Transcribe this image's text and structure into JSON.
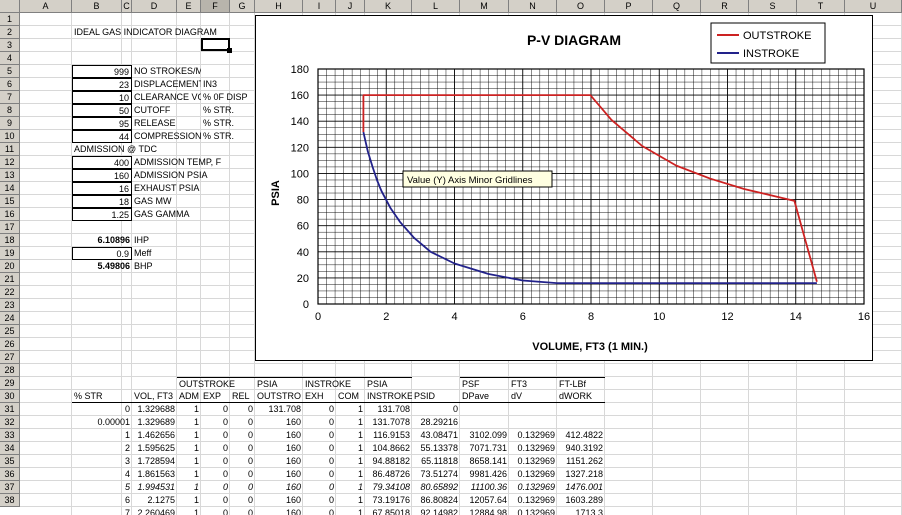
{
  "columns": [
    "A",
    "B",
    "C",
    "D",
    "E",
    "F",
    "G",
    "H",
    "I",
    "J",
    "K",
    "L",
    "M",
    "N",
    "O",
    "P",
    "Q",
    "R",
    "S",
    "T",
    "U"
  ],
  "visible_rows": [
    1,
    2,
    3,
    4,
    5,
    6,
    7,
    8,
    9,
    10,
    11,
    12,
    13,
    14,
    15,
    16,
    17,
    18,
    19,
    20,
    21,
    22,
    23,
    24,
    25,
    26,
    27,
    28,
    29,
    30,
    31,
    32,
    33,
    34,
    35,
    36,
    37,
    38,
    39
  ],
  "header_rows_shown": [
    1,
    2,
    3,
    4,
    5,
    6,
    7,
    8,
    9,
    10,
    11,
    12,
    13,
    14,
    15,
    16,
    17,
    18,
    19,
    20,
    21,
    22,
    23,
    24,
    25,
    26,
    27,
    28,
    29,
    30,
    31,
    32,
    33,
    34,
    35,
    36,
    37,
    38
  ],
  "title_cell": "IDEAL GAS INDICATOR DIAGRAM",
  "inputs": [
    {
      "row": 5,
      "value": "999",
      "label": "NO STROKES/MIN",
      "unit": ""
    },
    {
      "row": 6,
      "value": "23",
      "label": "DISPLACEMENT",
      "unit": "IN3"
    },
    {
      "row": 7,
      "value": "10",
      "label": "CLEARANCE VOL",
      "unit": "% 0F DISP"
    },
    {
      "row": 8,
      "value": "50",
      "label": "CUTOFF",
      "unit": "% STR."
    },
    {
      "row": 9,
      "value": "95",
      "label": "RELEASE",
      "unit": "% STR."
    },
    {
      "row": 10,
      "value": "44",
      "label": "COMPRESSION",
      "unit": "% STR."
    }
  ],
  "admission_heading": "ADMISSION @ TDC",
  "gas_inputs": [
    {
      "row": 12,
      "value": "400",
      "label": "ADMISSION TEMP, F"
    },
    {
      "row": 13,
      "value": "160",
      "label": "ADMISSION PSIA"
    },
    {
      "row": 14,
      "value": "16",
      "label": "EXHAUST PSIA"
    },
    {
      "row": 15,
      "value": "18",
      "label": "GAS MW"
    },
    {
      "row": 16,
      "value": "1.25",
      "label": "GAS GAMMA"
    }
  ],
  "results": [
    {
      "row": 18,
      "value": "6.10896",
      "label": "IHP",
      "bold": true,
      "boxed": false
    },
    {
      "row": 19,
      "value": "0.9",
      "label": "Meff",
      "bold": false,
      "boxed": true
    },
    {
      "row": 20,
      "value": "5.49806",
      "label": "BHP",
      "bold": true,
      "boxed": false
    }
  ],
  "table": {
    "group_headers": [
      {
        "col": "E",
        "text": "OUTSTROKE"
      },
      {
        "col": "H",
        "text": "PSIA"
      },
      {
        "col": "I",
        "text": "INSTROKE"
      },
      {
        "col": "K",
        "text": "PSIA"
      },
      {
        "col": "M",
        "text": "PSF"
      },
      {
        "col": "N",
        "text": "FT3"
      },
      {
        "col": "O",
        "text": "FT-LBf"
      }
    ],
    "col_headers": {
      "B": "% STR",
      "D": "VOL, FT3",
      "E": "ADM",
      "F": "EXP",
      "G": "REL",
      "H": "OUTSTRO",
      "I": "EXH",
      "J": "COM",
      "K": "INSTROKE",
      "L": "PSID",
      "M": "DPave",
      "N": "dV",
      "O": "dWORK"
    },
    "rows": [
      {
        "row": 31,
        "B": "0",
        "D": "1.329688",
        "E": "1",
        "F": "0",
        "G": "0",
        "H": "131.708",
        "I": "0",
        "J": "1",
        "K": "131.708",
        "L": "0",
        "M": "",
        "N": "",
        "O": "",
        "italic": false
      },
      {
        "row": 32,
        "B": "0.00001",
        "D": "1.329689",
        "E": "1",
        "F": "0",
        "G": "0",
        "H": "160",
        "I": "0",
        "J": "1",
        "K": "131.7078",
        "L": "28.29216",
        "M": "",
        "N": "",
        "O": "",
        "italic": false
      },
      {
        "row": 33,
        "B": "1",
        "D": "1.462656",
        "E": "1",
        "F": "0",
        "G": "0",
        "H": "160",
        "I": "0",
        "J": "1",
        "K": "116.9153",
        "L": "43.08471",
        "M": "3102.099",
        "N": "0.132969",
        "O": "412.4822",
        "italic": false
      },
      {
        "row": 34,
        "B": "2",
        "D": "1.595625",
        "E": "1",
        "F": "0",
        "G": "0",
        "H": "160",
        "I": "0",
        "J": "1",
        "K": "104.8662",
        "L": "55.13378",
        "M": "7071.731",
        "N": "0.132969",
        "O": "940.3192",
        "italic": false
      },
      {
        "row": 35,
        "B": "3",
        "D": "1.728594",
        "E": "1",
        "F": "0",
        "G": "0",
        "H": "160",
        "I": "0",
        "J": "1",
        "K": "94.88182",
        "L": "65.11818",
        "M": "8658.141",
        "N": "0.132969",
        "O": "1151.262",
        "italic": false
      },
      {
        "row": 36,
        "B": "4",
        "D": "1.861563",
        "E": "1",
        "F": "0",
        "G": "0",
        "H": "160",
        "I": "0",
        "J": "1",
        "K": "86.48726",
        "L": "73.51274",
        "M": "9981.426",
        "N": "0.132969",
        "O": "1327.218",
        "italic": false
      },
      {
        "row": 37,
        "B": "5",
        "D": "1.994531",
        "E": "1",
        "F": "0",
        "G": "0",
        "H": "160",
        "I": "0",
        "J": "1",
        "K": "79.34108",
        "L": "80.65892",
        "M": "11100.36",
        "N": "0.132969",
        "O": "1476.001",
        "italic": true
      },
      {
        "row": 38,
        "B": "6",
        "D": "2.1275",
        "E": "1",
        "F": "0",
        "G": "0",
        "H": "160",
        "I": "0",
        "J": "1",
        "K": "73.19176",
        "L": "86.80824",
        "M": "12057.64",
        "N": "0.132969",
        "O": "1603.289",
        "italic": false
      },
      {
        "row": 39,
        "B": "7",
        "D": "2.260469",
        "E": "1",
        "F": "0",
        "G": "0",
        "H": "160",
        "I": "0",
        "J": "1",
        "K": "67.85018",
        "L": "92.14982",
        "M": "12884.98",
        "N": "0.132969",
        "O": "1713.3",
        "italic": false
      }
    ]
  },
  "chart_data": {
    "type": "line",
    "title": "P-V DIAGRAM",
    "xlabel": "VOLUME, FT3 (1 MIN.)",
    "ylabel": "PSIA",
    "xlim": [
      0,
      16
    ],
    "ylim": [
      0,
      180
    ],
    "xticks": [
      0,
      2,
      4,
      6,
      8,
      10,
      12,
      14,
      16
    ],
    "yticks": [
      0,
      20,
      40,
      60,
      80,
      100,
      120,
      140,
      160,
      180
    ],
    "x_minor_step": 0.25,
    "y_minor_step": 5,
    "grid": true,
    "legend_position": "top-right",
    "tooltip": "Value (Y) Axis Minor Gridlines",
    "series": [
      {
        "name": "OUTSTROKE",
        "color": "#cc2222",
        "x": [
          1.33,
          1.33,
          7.98,
          8.6,
          9.5,
          10.5,
          11.5,
          12.5,
          13.96,
          14.62
        ],
        "y": [
          131.7,
          160,
          160,
          141,
          121,
          106,
          96,
          88,
          79,
          17
        ]
      },
      {
        "name": "INSTROKE",
        "color": "#22228a",
        "x": [
          1.33,
          1.46,
          1.6,
          1.73,
          1.86,
          2.13,
          2.4,
          2.8,
          3.3,
          4.0,
          5.0,
          6.0,
          7.0,
          8.0,
          10.0,
          12.0,
          14.0,
          14.62
        ],
        "y": [
          131.7,
          116.9,
          104.9,
          94.9,
          86.5,
          73.2,
          63,
          51,
          40,
          31,
          23,
          18,
          16,
          16,
          16,
          16,
          16,
          16
        ]
      }
    ]
  }
}
